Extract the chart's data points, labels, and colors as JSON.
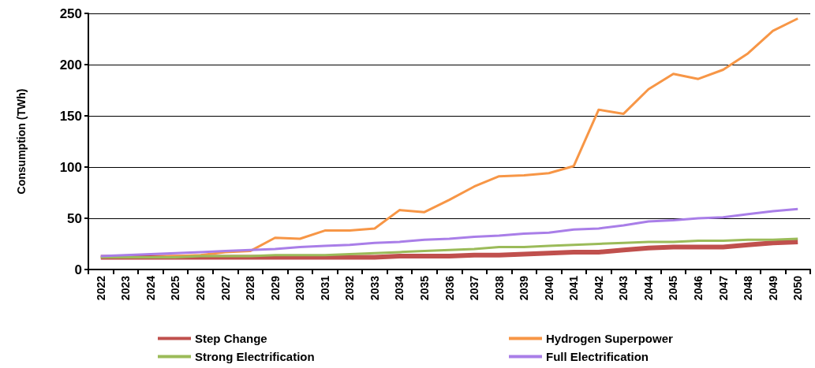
{
  "chart_data": {
    "type": "line",
    "ylabel": "Consumption (TWh)",
    "categories": [
      "2022",
      "2023",
      "2024",
      "2025",
      "2026",
      "2027",
      "2028",
      "2029",
      "2030",
      "2031",
      "2032",
      "2033",
      "2034",
      "2035",
      "2036",
      "2037",
      "2038",
      "2039",
      "2040",
      "2041",
      "2042",
      "2043",
      "2044",
      "2045",
      "2046",
      "2047",
      "2048",
      "2049",
      "2050"
    ],
    "series": [
      {
        "name": "Step Change",
        "color": "#c0504d",
        "values": [
          12,
          12,
          12,
          12,
          12,
          12,
          12,
          12,
          12,
          12,
          12,
          12,
          13,
          13,
          13,
          14,
          14,
          15,
          16,
          17,
          17,
          19,
          21,
          22,
          22,
          22,
          24,
          26,
          27
        ]
      },
      {
        "name": "Hydrogen Superpower",
        "color": "#f79646",
        "values": [
          12,
          12,
          12,
          13,
          14,
          17,
          18,
          31,
          30,
          38,
          38,
          40,
          58,
          56,
          68,
          81,
          91,
          92,
          94,
          101,
          156,
          152,
          176,
          191,
          186,
          195,
          211,
          233,
          245
        ]
      },
      {
        "name": "Strong Electrification",
        "color": "#9bbb59",
        "values": [
          12,
          12,
          12,
          12,
          13,
          13,
          13,
          14,
          14,
          14,
          15,
          16,
          17,
          18,
          19,
          20,
          22,
          22,
          23,
          24,
          25,
          26,
          27,
          27,
          28,
          28,
          29,
          29,
          30
        ]
      },
      {
        "name": "Full Electrification",
        "color": "#a97ee8",
        "values": [
          13,
          14,
          15,
          16,
          17,
          18,
          19,
          20,
          22,
          23,
          24,
          26,
          27,
          29,
          30,
          32,
          33,
          35,
          36,
          39,
          40,
          43,
          47,
          48,
          50,
          51,
          54,
          57,
          59
        ]
      }
    ],
    "ylim": [
      0,
      250
    ],
    "yticks": [
      0,
      50,
      100,
      150,
      200,
      250
    ],
    "grid": "y",
    "legend": "bottom",
    "marker": "none",
    "line_style": "solid"
  }
}
